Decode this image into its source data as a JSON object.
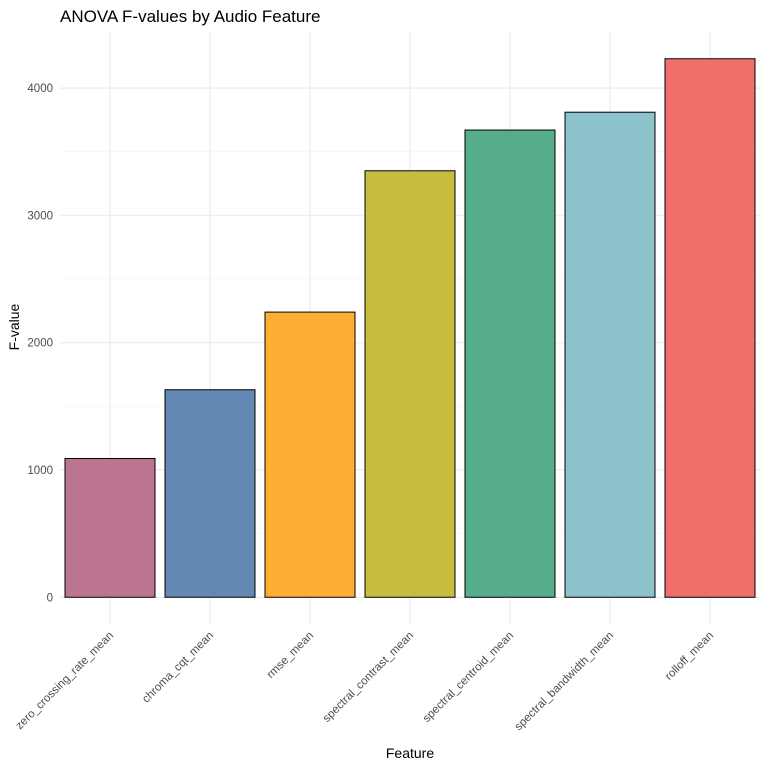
{
  "chart_data": {
    "type": "bar",
    "title": "ANOVA F-values by Audio Feature",
    "xlabel": "Feature",
    "ylabel": "F-value",
    "categories": [
      "zero_crossing_rate_mean",
      "chroma_cqt_mean",
      "rmse_mean",
      "spectral_contrast_mean",
      "spectral_centroid_mean",
      "spectral_bandwidth_mean",
      "rolloff_mean"
    ],
    "values": [
      1090,
      1630,
      2240,
      3350,
      3670,
      3810,
      4230
    ],
    "colors": [
      "#BC7590",
      "#6388B4",
      "#FFAE34",
      "#C5BC40",
      "#55AD89",
      "#8CC2CA",
      "#EF6F6A"
    ],
    "ylim": [
      -210,
      4440
    ],
    "yticks": [
      0,
      1000,
      2000,
      3000,
      4000
    ],
    "grid": true,
    "legend": "none"
  }
}
